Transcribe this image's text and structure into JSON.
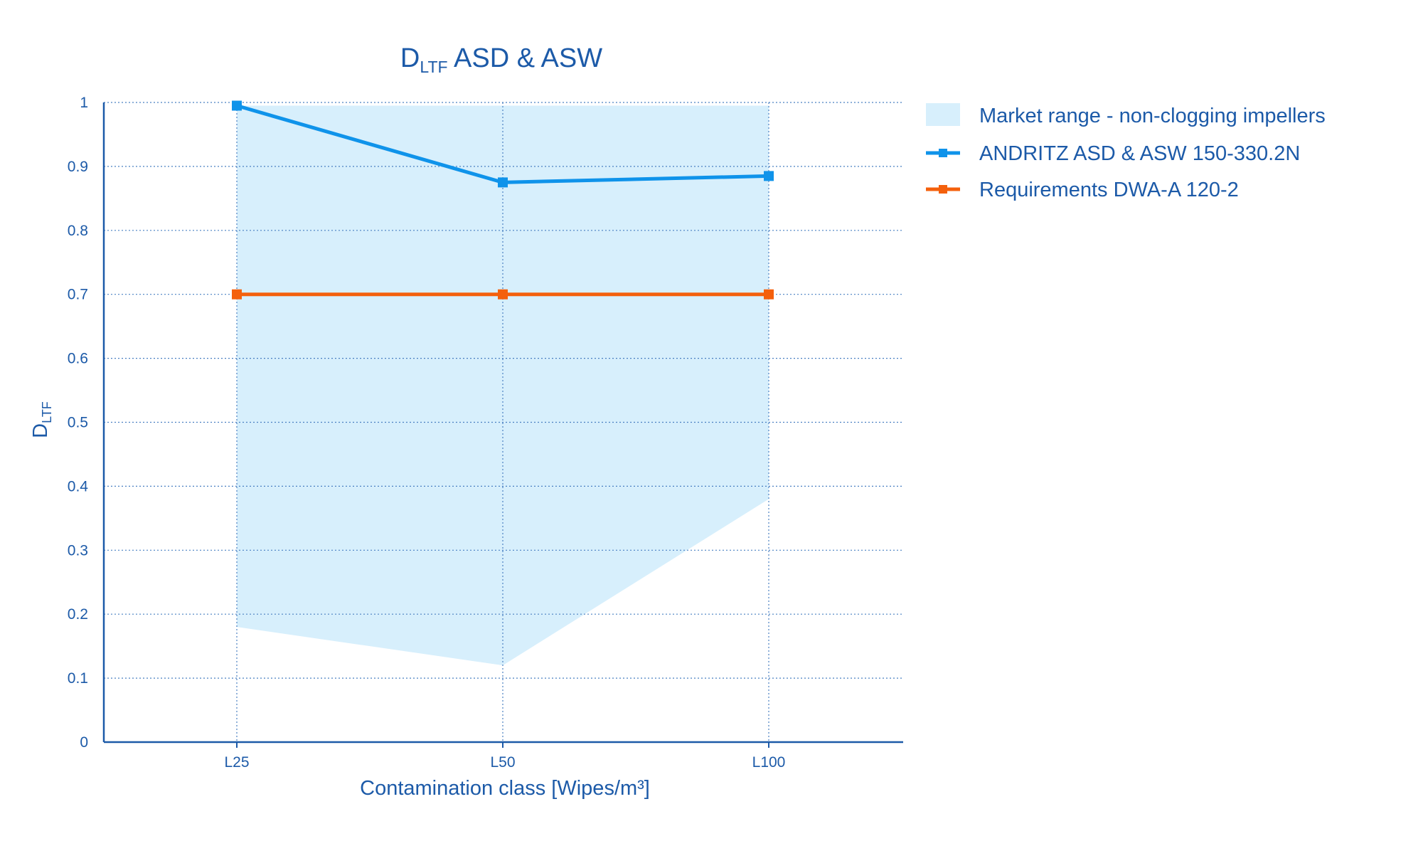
{
  "chart_data": {
    "type": "line",
    "title_main": "D",
    "title_sub": "LTF",
    "title_rest": " ASD & ASW",
    "ylabel_main": "D",
    "ylabel_sub": "LTF",
    "xlabel": "Contamination class [Wipes/m³]",
    "categories": [
      "L25",
      "L50",
      "L100"
    ],
    "ylim": [
      0,
      1
    ],
    "yticks": [
      "0",
      "0.1",
      "0.2",
      "0.3",
      "0.4",
      "0.5",
      "0.6",
      "0.7",
      "0.8",
      "0.9",
      "1"
    ],
    "grid": true,
    "legend_position": "right",
    "band": {
      "name": "Market range - non-clogging impellers",
      "lower": [
        0.18,
        0.12,
        0.38
      ],
      "upper": [
        0.995,
        0.995,
        0.995
      ],
      "color": "#d7effc"
    },
    "series": [
      {
        "name": "ANDRITZ ASD & ASW 150-330.2N",
        "values": [
          0.995,
          0.875,
          0.885
        ],
        "color": "#0f93ea"
      },
      {
        "name": "Requirements DWA-A 120-2",
        "values": [
          0.7,
          0.7,
          0.7
        ],
        "color": "#f4600c"
      }
    ]
  }
}
